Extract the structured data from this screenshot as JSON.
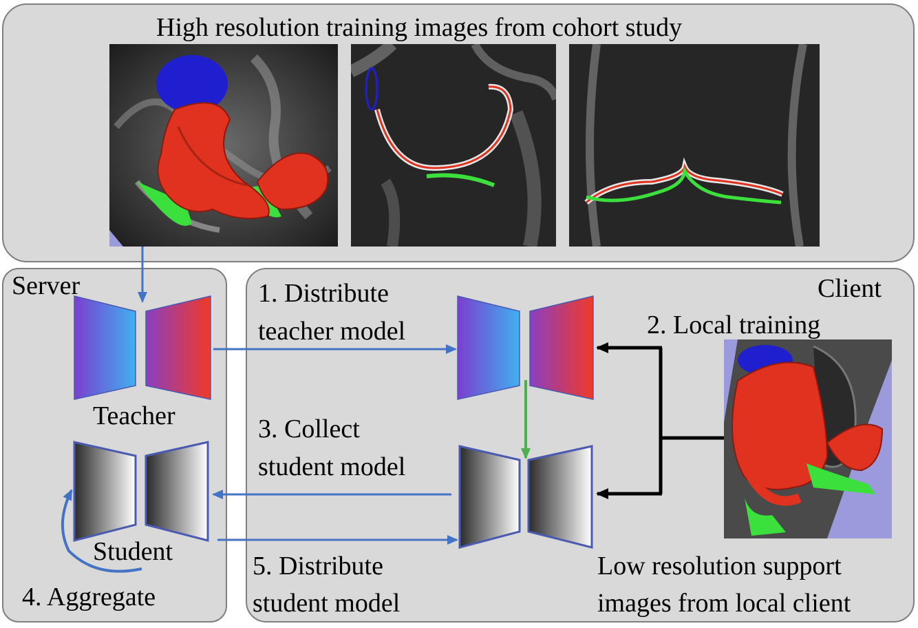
{
  "top_panel": {
    "title": "High resolution training images from cohort study"
  },
  "server": {
    "label": "Server",
    "teacher_label": "Teacher",
    "student_label": "Student",
    "aggregate_label": "4. Aggregate"
  },
  "client": {
    "label": "Client",
    "step1": [
      "1. Distribute",
      "teacher model"
    ],
    "step2": "2. Local training",
    "step3": [
      "3. Collect",
      "student model"
    ],
    "step5": [
      "5. Distribute",
      "student model"
    ],
    "support_caption": [
      "Low resolution support",
      "images from local client"
    ]
  },
  "colors": {
    "panel_fill": "#d9d9d9",
    "panel_border": "#7f7f7f",
    "arrow_blue": "#4472c4",
    "arrow_green": "#4cb050",
    "arrow_black": "#000000",
    "segment_blue": "#1f1fd0",
    "segment_red": "#e0321e",
    "segment_green": "#3ce03c"
  },
  "icons": [
    "teacher-model-icon",
    "student-model-icon",
    "mri-knee-3d-image",
    "mri-sagittal-image",
    "mri-coronal-image",
    "mri-low-res-3d-image"
  ]
}
